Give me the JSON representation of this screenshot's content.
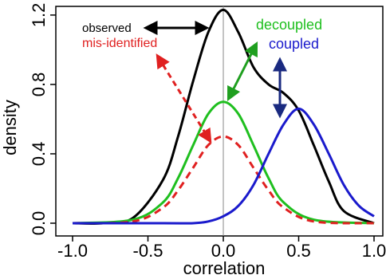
{
  "chart_data": {
    "type": "line",
    "xlabel": "correlation",
    "ylabel": "density",
    "xlim": [
      -1.0,
      1.0
    ],
    "ylim": [
      0.0,
      1.25
    ],
    "x_ticks": [
      "-1.0",
      "-0.5",
      "0.0",
      "0.5",
      "1.0"
    ],
    "y_ticks": [
      "0.0",
      "0.4",
      "0.8",
      "1.2"
    ],
    "x_tick_values": [
      -1.0,
      -0.5,
      0.0,
      0.5,
      1.0
    ],
    "y_tick_values": [
      0.0,
      0.4,
      0.8,
      1.2
    ],
    "reference_line_x": 0.0,
    "series": [
      {
        "name": "observed",
        "color": "#000000",
        "style": "solid",
        "x": [
          -1.0,
          -0.8,
          -0.6,
          -0.4,
          -0.3,
          -0.2,
          -0.1,
          0.0,
          0.1,
          0.2,
          0.3,
          0.4,
          0.5,
          0.6,
          0.7,
          0.8,
          1.0
        ],
        "y": [
          0.0,
          0.0,
          0.03,
          0.25,
          0.5,
          0.82,
          1.1,
          1.23,
          1.1,
          0.9,
          0.8,
          0.75,
          0.65,
          0.45,
          0.24,
          0.07,
          0.0
        ]
      },
      {
        "name": "decoupled",
        "color": "#1fbf1f",
        "style": "solid",
        "x": [
          -1.0,
          -0.6,
          -0.4,
          -0.3,
          -0.2,
          -0.1,
          0.0,
          0.1,
          0.2,
          0.3,
          0.4,
          0.6,
          1.0
        ],
        "y": [
          0.0,
          0.02,
          0.12,
          0.26,
          0.45,
          0.63,
          0.7,
          0.63,
          0.45,
          0.26,
          0.12,
          0.02,
          0.0
        ]
      },
      {
        "name": "mis-identified",
        "color": "#e02020",
        "style": "dashed",
        "x": [
          -1.0,
          -0.6,
          -0.4,
          -0.3,
          -0.2,
          -0.1,
          0.0,
          0.1,
          0.2,
          0.3,
          0.4,
          0.6,
          1.0
        ],
        "y": [
          0.0,
          0.01,
          0.09,
          0.19,
          0.32,
          0.45,
          0.5,
          0.45,
          0.32,
          0.19,
          0.09,
          0.01,
          0.0
        ]
      },
      {
        "name": "coupled",
        "color": "#1a1acc",
        "style": "solid",
        "x": [
          -1.0,
          -0.4,
          -0.2,
          -0.1,
          0.0,
          0.1,
          0.2,
          0.3,
          0.4,
          0.5,
          0.6,
          0.7,
          0.8,
          0.9,
          1.0
        ],
        "y": [
          0.0,
          0.0,
          0.0,
          0.01,
          0.04,
          0.1,
          0.22,
          0.4,
          0.57,
          0.66,
          0.57,
          0.4,
          0.22,
          0.1,
          0.04
        ]
      }
    ],
    "annotations": [
      {
        "text": "observed",
        "color": "#000000"
      },
      {
        "text": "mis-identified",
        "color": "#e02020"
      },
      {
        "text": "decoupled",
        "color": "#1fbf1f"
      },
      {
        "text": "coupled",
        "color": "#1a1acc"
      }
    ]
  }
}
